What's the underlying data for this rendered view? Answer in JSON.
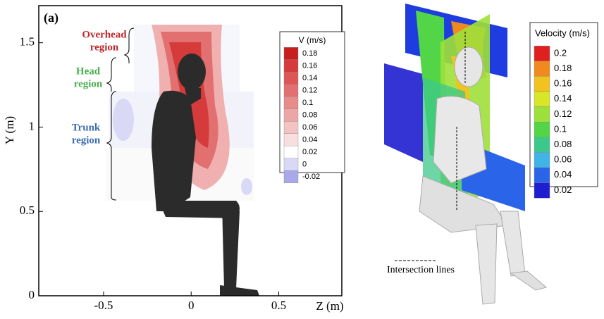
{
  "panel_a": {
    "label": "(a)",
    "x_label": "Z (m)",
    "y_label": "Y (m)",
    "xlim": [
      -0.87,
      0.86
    ],
    "ylim": [
      0,
      1.72
    ],
    "xticks": [
      -0.5,
      0,
      0.5
    ],
    "yticks": [
      0,
      0.5,
      1,
      1.5
    ],
    "regions": [
      {
        "lines": [
          "Overhead",
          "region"
        ],
        "color": "#c0282d"
      },
      {
        "lines": [
          "Head",
          "region"
        ],
        "color": "#4caf50"
      },
      {
        "lines": [
          "Trunk",
          "region"
        ],
        "color": "#3f6fb5"
      }
    ],
    "legend": {
      "title": "V (m/s)",
      "levels": [
        0.18,
        0.16,
        0.14,
        0.12,
        0.1,
        0.08,
        0.06,
        0.04,
        0.02,
        0,
        -0.02
      ],
      "colors": [
        "#c81e1e",
        "#d53b3b",
        "#dc5656",
        "#e27070",
        "#e88b8b",
        "#eda6a6",
        "#f3c3c3",
        "#f8dede",
        "#ffffff",
        "#d9d9f5",
        "#a9a9ea"
      ]
    }
  },
  "panel_b": {
    "legend": {
      "title": "Velocity (m/s)",
      "levels": [
        0.2,
        0.18,
        0.16,
        0.14,
        0.12,
        0.1,
        0.08,
        0.06,
        0.04,
        0.02
      ],
      "colors": [
        "#e0201e",
        "#f08a1e",
        "#f2c31e",
        "#d8e628",
        "#9ee03a",
        "#52d648",
        "#3cc88a",
        "#40b4e6",
        "#2a64e8",
        "#1e1ed0"
      ]
    },
    "annotation": "Intersection lines"
  }
}
